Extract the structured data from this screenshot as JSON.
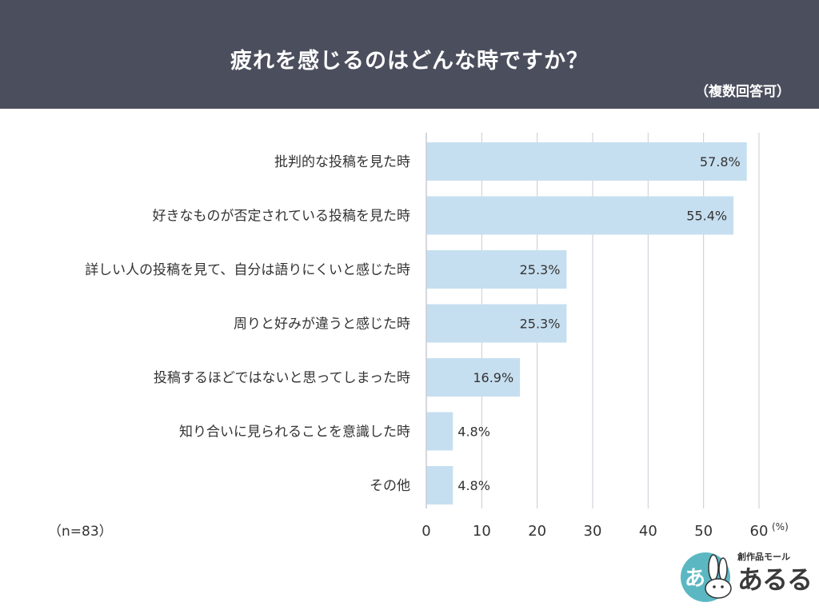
{
  "header": {
    "title": "疲れを感じるのはどんな時ですか？",
    "subtitle": "（複数回答可）"
  },
  "n_label": "（n=83）",
  "logo": {
    "tagline": "創作品モール",
    "name": "あるる",
    "mark_text": "あ"
  },
  "colors": {
    "header_bg": "#4b4e5d",
    "bar": "#c6dff0",
    "grid": "#c9cbd6",
    "logo_teal": "#5bb8c2"
  },
  "chart_data": {
    "type": "bar",
    "orientation": "horizontal",
    "categories": [
      "批判的な投稿を見た時",
      "好きなものが否定されている投稿を見た時",
      "詳しい人の投稿を見て、自分は語りにくいと感じた時",
      "周りと好みが違うと感じた時",
      "投稿するほどではないと思ってしまった時",
      "知り合いに見られることを意識した時",
      "その他"
    ],
    "values": [
      57.8,
      55.4,
      25.3,
      25.3,
      16.9,
      4.8,
      4.8
    ],
    "value_labels": [
      "57.8%",
      "55.4%",
      "25.3%",
      "25.3%",
      "16.9%",
      "4.8%",
      "4.8%"
    ],
    "xlim": [
      0,
      60
    ],
    "xticks": [
      "0",
      "10",
      "20",
      "30",
      "40",
      "50",
      "60"
    ],
    "unit": "(%)",
    "grid": true
  }
}
